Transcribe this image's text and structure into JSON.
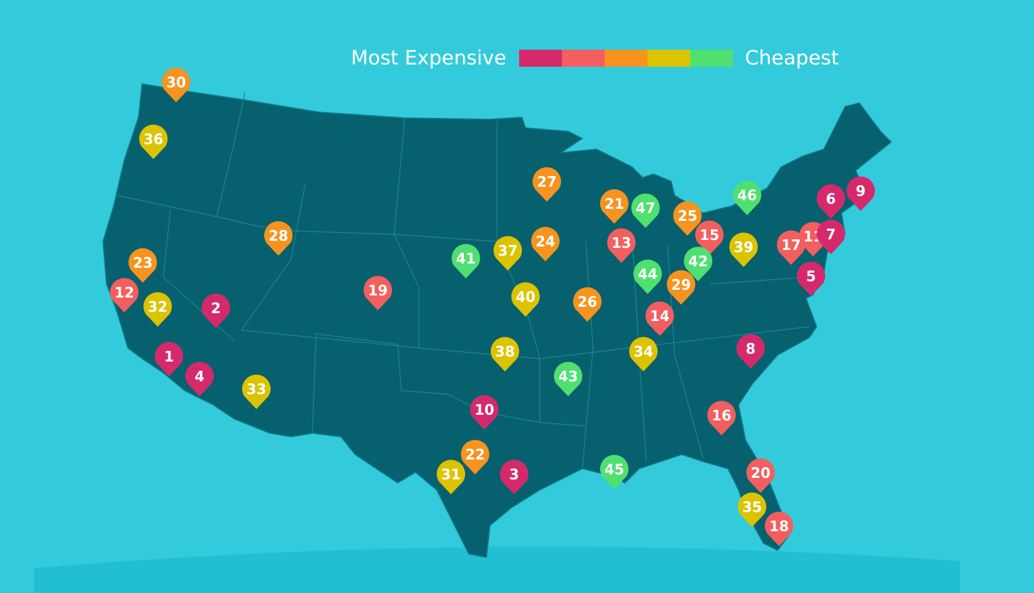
{
  "legend": {
    "high_label": "Most Expensive",
    "low_label": "Cheapest",
    "colors": [
      "#d42a6b",
      "#f35e5e",
      "#f7931e",
      "#dcc300",
      "#4fe070"
    ]
  },
  "pins": [
    {
      "label": 30,
      "color": "#f7931e"
    },
    {
      "label": 36,
      "color": "#dcc300"
    },
    {
      "label": 28,
      "color": "#f7931e"
    },
    {
      "label": 23,
      "color": "#f7931e"
    },
    {
      "label": 12,
      "color": "#f35e5e"
    },
    {
      "label": 32,
      "color": "#dcc300"
    },
    {
      "label": 2,
      "color": "#d42a6b"
    },
    {
      "label": 1,
      "color": "#d42a6b"
    },
    {
      "label": 4,
      "color": "#d42a6b"
    },
    {
      "label": 33,
      "color": "#dcc300"
    },
    {
      "label": 19,
      "color": "#f35e5e"
    },
    {
      "label": 41,
      "color": "#4fe070"
    },
    {
      "label": 37,
      "color": "#dcc300"
    },
    {
      "label": 24,
      "color": "#f7931e"
    },
    {
      "label": 27,
      "color": "#f7931e"
    },
    {
      "label": 40,
      "color": "#dcc300"
    },
    {
      "label": 26,
      "color": "#f7931e"
    },
    {
      "label": 38,
      "color": "#dcc300"
    },
    {
      "label": 43,
      "color": "#4fe070"
    },
    {
      "label": 10,
      "color": "#d42a6b"
    },
    {
      "label": 22,
      "color": "#f7931e"
    },
    {
      "label": 31,
      "color": "#dcc300"
    },
    {
      "label": 3,
      "color": "#d42a6b"
    },
    {
      "label": 45,
      "color": "#4fe070"
    },
    {
      "label": 21,
      "color": "#f7931e"
    },
    {
      "label": 47,
      "color": "#4fe070"
    },
    {
      "label": 13,
      "color": "#f35e5e"
    },
    {
      "label": 44,
      "color": "#4fe070"
    },
    {
      "label": 14,
      "color": "#f35e5e"
    },
    {
      "label": 34,
      "color": "#dcc300"
    },
    {
      "label": 29,
      "color": "#f7931e"
    },
    {
      "label": 25,
      "color": "#f7931e"
    },
    {
      "label": 15,
      "color": "#f35e5e"
    },
    {
      "label": 42,
      "color": "#4fe070"
    },
    {
      "label": 46,
      "color": "#4fe070"
    },
    {
      "label": 39,
      "color": "#dcc300"
    },
    {
      "label": 17,
      "color": "#f35e5e"
    },
    {
      "label": 11,
      "color": "#f35e5e"
    },
    {
      "label": 7,
      "color": "#d42a6b"
    },
    {
      "label": 6,
      "color": "#d42a6b"
    },
    {
      "label": 9,
      "color": "#d42a6b"
    },
    {
      "label": 5,
      "color": "#d42a6b"
    },
    {
      "label": 8,
      "color": "#d42a6b"
    },
    {
      "label": 16,
      "color": "#f35e5e"
    },
    {
      "label": 20,
      "color": "#f35e5e"
    },
    {
      "label": 35,
      "color": "#dcc300"
    },
    {
      "label": 18,
      "color": "#f35e5e"
    }
  ]
}
